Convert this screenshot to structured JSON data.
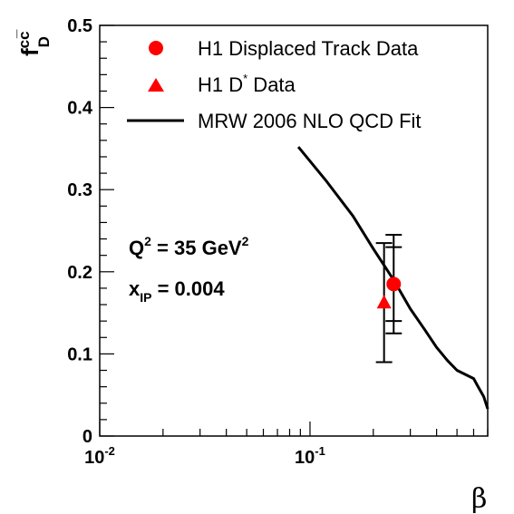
{
  "chart_data": {
    "type": "scatter",
    "xscale": "log",
    "xlim": [
      0.01,
      0.7
    ],
    "ylim": [
      0,
      0.5
    ],
    "yticks": [
      "0",
      "0.1",
      "0.2",
      "0.3",
      "0.4",
      "0.5"
    ],
    "xticks": [
      {
        "base": "10",
        "exp": "-2",
        "value": 0.01
      },
      {
        "base": "10",
        "exp": "-1",
        "value": 0.1
      }
    ],
    "ylabel": {
      "base": "f",
      "sup": "cc̅",
      "sub": "D"
    },
    "xlabel": "β",
    "legend": {
      "placement": "top-left",
      "entries": [
        {
          "text": "H1 Displaced Track Data",
          "sup": "",
          "suffix": ""
        },
        {
          "text": "H1 D",
          "sup": "*",
          "suffix": " Data"
        },
        {
          "text": "MRW 2006 NLO QCD Fit",
          "sup": "",
          "suffix": ""
        }
      ]
    },
    "annotations": {
      "q2": {
        "prefix": "Q",
        "sup": "2",
        "mid": " = 35 GeV",
        "sup2": "2"
      },
      "xip": {
        "prefix": "x",
        "sub": "IP",
        "mid": " = 0.004"
      }
    },
    "series": [
      {
        "name": "H1 Displaced Track Data",
        "marker": "circle",
        "color": "#ff0000",
        "points": [
          {
            "x": 0.25,
            "y": 0.185,
            "y_low": 0.125,
            "y_high": 0.245,
            "stat_low": 0.14,
            "stat_high": 0.23
          }
        ]
      },
      {
        "name": "H1 D* Data",
        "marker": "triangle",
        "color": "#ff0000",
        "points": [
          {
            "x": 0.225,
            "y": 0.162,
            "y_low": 0.09,
            "y_high": 0.235
          }
        ]
      },
      {
        "name": "MRW 2006 NLO QCD Fit",
        "marker": "line",
        "color": "#000000",
        "points": [
          {
            "x": 0.088,
            "y": 0.352
          },
          {
            "x": 0.12,
            "y": 0.31
          },
          {
            "x": 0.16,
            "y": 0.268
          },
          {
            "x": 0.2,
            "y": 0.228
          },
          {
            "x": 0.25,
            "y": 0.19
          },
          {
            "x": 0.3,
            "y": 0.155
          },
          {
            "x": 0.35,
            "y": 0.13
          },
          {
            "x": 0.4,
            "y": 0.108
          },
          {
            "x": 0.45,
            "y": 0.092
          },
          {
            "x": 0.5,
            "y": 0.08
          },
          {
            "x": 0.6,
            "y": 0.07
          },
          {
            "x": 0.63,
            "y": 0.06
          },
          {
            "x": 0.67,
            "y": 0.048
          },
          {
            "x": 0.7,
            "y": 0.033
          }
        ]
      }
    ]
  }
}
